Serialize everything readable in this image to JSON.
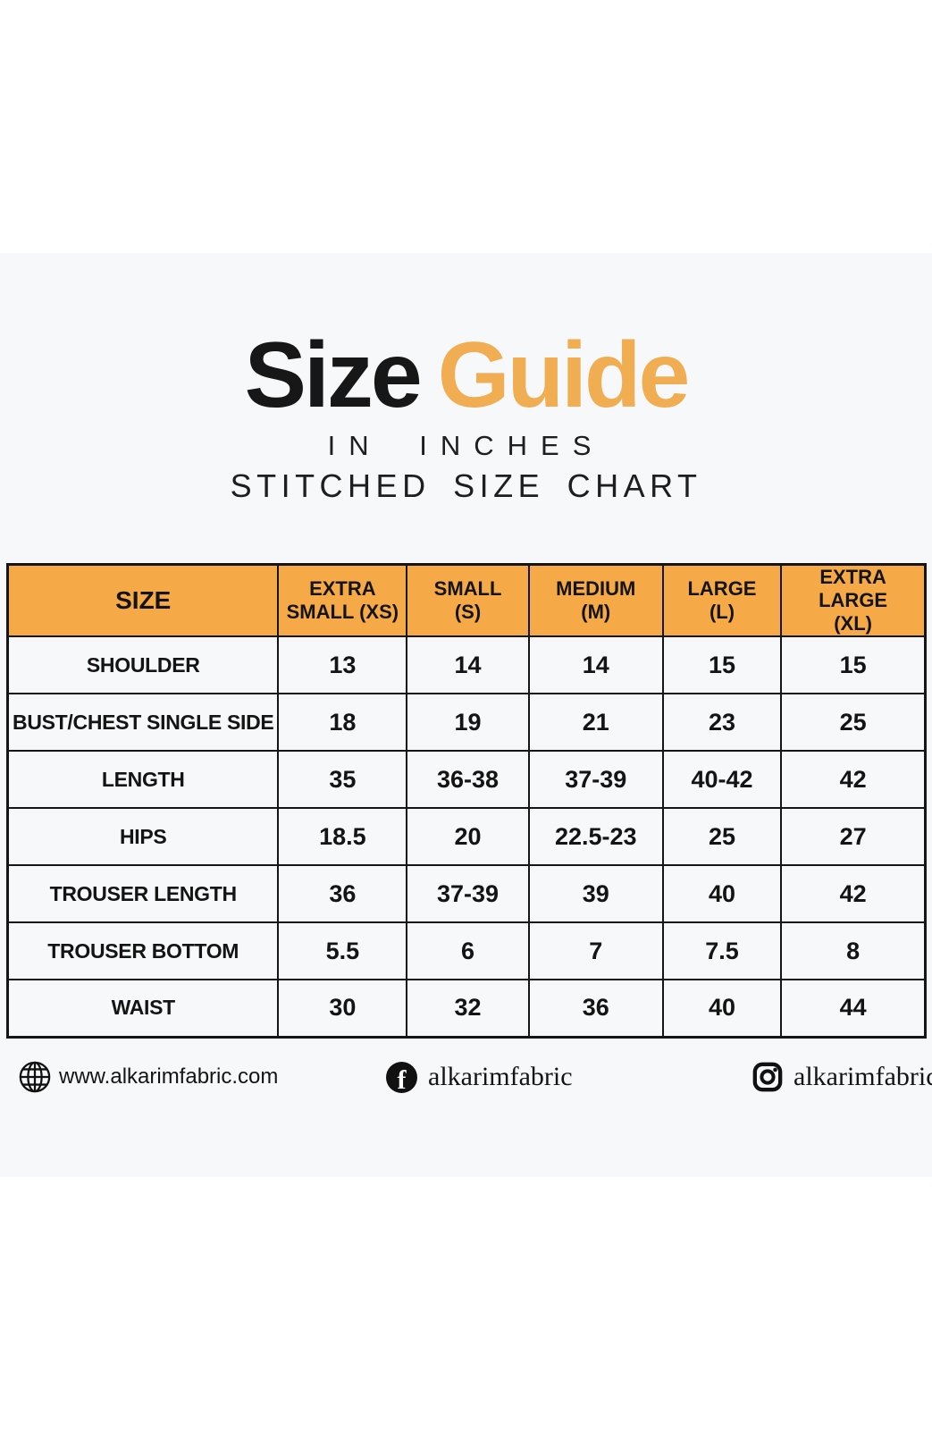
{
  "header": {
    "title_black": "Size",
    "title_orange": "Guide",
    "subtitle_line1": "IN INCHES",
    "subtitle_line2": "STITCHED SIZE CHART"
  },
  "colors": {
    "accent_orange": "#F5A947",
    "title_orange": "#F0AD52",
    "title_black": "#171717",
    "band_background": "#F7F8FA",
    "text_dark": "#141414"
  },
  "size_table": {
    "columns": [
      {
        "id": "size",
        "label": "SIZE",
        "lines": [
          "SIZE"
        ]
      },
      {
        "id": "xs",
        "label": "EXTRA SMALL (XS)",
        "lines": [
          "EXTRA",
          "SMALL (XS)"
        ]
      },
      {
        "id": "s",
        "label": "SMALL (S)",
        "lines": [
          "SMALL",
          "(S)"
        ]
      },
      {
        "id": "m",
        "label": "MEDIUM (M)",
        "lines": [
          "MEDIUM",
          "(M)"
        ]
      },
      {
        "id": "l",
        "label": "LARGE (L)",
        "lines": [
          "LARGE",
          "(L)"
        ]
      },
      {
        "id": "xl",
        "label": "EXTRA LARGE (XL)",
        "lines": [
          "EXTRA LARGE",
          "(XL)"
        ]
      }
    ],
    "rows": [
      {
        "key": "shoulder",
        "label": "SHOULDER",
        "values": [
          "13",
          "14",
          "14",
          "15",
          "15"
        ]
      },
      {
        "key": "bust-chest-single-side",
        "label": "BUST/CHEST SINGLE SIDE",
        "values": [
          "18",
          "19",
          "21",
          "23",
          "25"
        ]
      },
      {
        "key": "length",
        "label": "LENGTH",
        "values": [
          "35",
          "36-38",
          "37-39",
          "40-42",
          "42"
        ]
      },
      {
        "key": "hips",
        "label": "HIPS",
        "values": [
          "18.5",
          "20",
          "22.5-23",
          "25",
          "27"
        ]
      },
      {
        "key": "trouser-length",
        "label": "TROUSER LENGTH",
        "values": [
          "36",
          "37-39",
          "39",
          "40",
          "42"
        ]
      },
      {
        "key": "trouser-bottom",
        "label": "TROUSER BOTTOM",
        "values": [
          "5.5",
          "6",
          "7",
          "7.5",
          "8"
        ]
      },
      {
        "key": "waist",
        "label": "WAIST",
        "values": [
          "30",
          "32",
          "36",
          "40",
          "44"
        ]
      }
    ]
  },
  "footer": {
    "website": "www.alkarimfabric.com",
    "facebook_handle": "alkarimfabric",
    "instagram_handle": "alkarimfabrics",
    "facebook_icon_letter": "f"
  }
}
